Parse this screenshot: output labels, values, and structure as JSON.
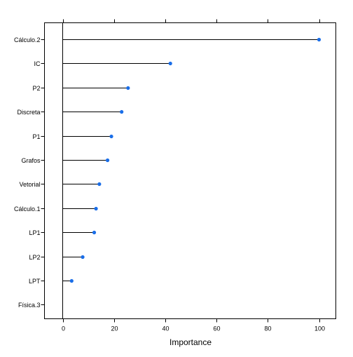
{
  "chart_data": {
    "type": "lollipop",
    "xlabel": "Importance",
    "xlim": [
      -7,
      107
    ],
    "x_ticks": [
      0,
      20,
      40,
      60,
      80,
      100
    ],
    "x_tick_labels": [
      "0",
      "20",
      "40",
      "60",
      "80",
      "100"
    ],
    "grid": false,
    "categories": [
      "Cálculo.2",
      "IC",
      "P2",
      "Discreta",
      "P1",
      "Grafos",
      "Vetorial",
      "Cálculo.1",
      "LP1",
      "LP2",
      "LPT",
      "Física.3"
    ],
    "values": [
      100,
      42,
      25.5,
      23,
      19,
      17.5,
      14.3,
      13,
      12.3,
      7.8,
      3.5,
      0
    ],
    "point_color": "#1a6ee8",
    "line_color": "#000000"
  }
}
